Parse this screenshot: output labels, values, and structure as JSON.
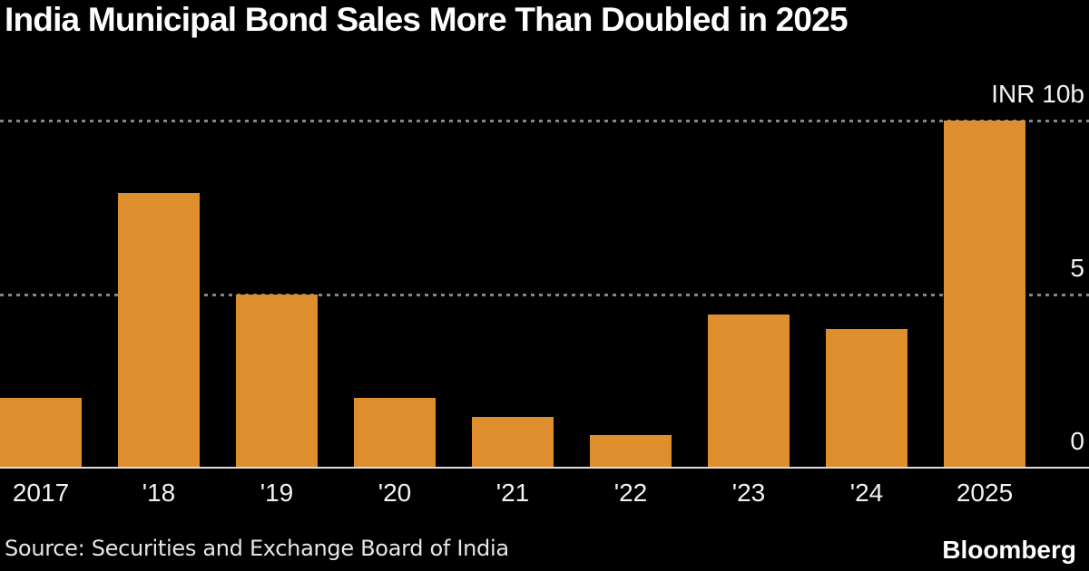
{
  "title": "India Municipal Bond Sales More Than Doubled in 2025",
  "source_note": "Source: Securities and Exchange Board of India",
  "brand": "Bloomberg",
  "colors": {
    "background": "#000000",
    "bar": "#DE8E2D",
    "gridline": "#868686",
    "axis_line": "#DCDCDC",
    "title_text": "#FFFFFF",
    "tick_text": "#F2F2F2"
  },
  "chart_data": {
    "type": "bar",
    "title": "India Municipal Bond Sales More Than Doubled in 2025",
    "categories": [
      "2017",
      "'18",
      "'19",
      "'20",
      "'21",
      "'22",
      "'23",
      "'24",
      "2025"
    ],
    "values": [
      2.0,
      7.9,
      5.0,
      2.0,
      1.45,
      0.95,
      4.4,
      4.0,
      10.0
    ],
    "xlabel": "",
    "ylabel": "",
    "unit": "INR billions",
    "ylim": [
      0,
      10.4
    ],
    "yticks": [
      {
        "value": 10,
        "label": "INR 10b"
      },
      {
        "value": 5,
        "label": "5"
      },
      {
        "value": 0,
        "label": "0"
      }
    ],
    "grid": "horizontal dotted gridlines at 5 and 10, solid baseline at 0",
    "legend_position": "none",
    "bar_color": "#DE8E2D",
    "background": "#000000"
  }
}
